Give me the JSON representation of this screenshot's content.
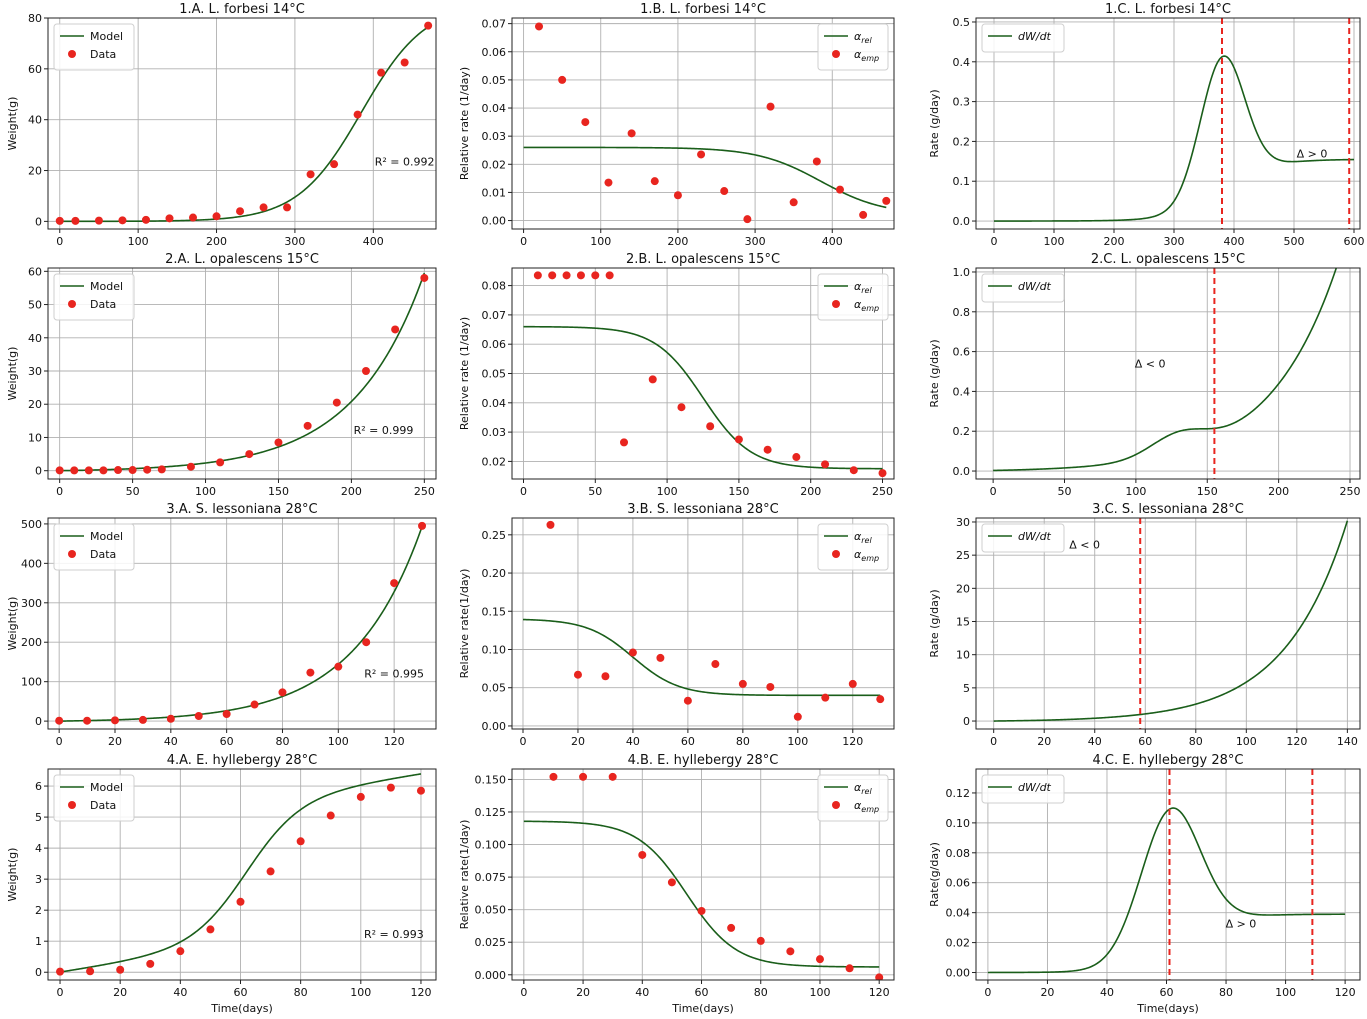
{
  "chart_data": [
    {
      "id": "1A",
      "type": "line",
      "title": "1.A. L. forbesi 14°C",
      "ylabel": "Weight(g)",
      "xlabel": "",
      "xlim": [
        -15,
        480
      ],
      "ylim": [
        -3,
        80
      ],
      "xticks": [
        0,
        100,
        200,
        300,
        400
      ],
      "yticks": [
        0,
        20,
        40,
        60,
        80
      ],
      "legend": [
        {
          "kind": "line",
          "label": "Model"
        },
        {
          "kind": "dot",
          "label": "Data"
        }
      ],
      "series": [
        {
          "kind": "line",
          "color": "#1a5e1a",
          "fn": {
            "type": "logistic",
            "K": 86,
            "r": 0.0245,
            "x0": 385,
            "base": 0
          },
          "x_range": [
            0,
            470
          ]
        },
        {
          "kind": "scatter",
          "color": "#e8251f",
          "x": [
            0,
            20,
            50,
            80,
            110,
            140,
            170,
            200,
            230,
            260,
            290,
            320,
            350,
            380,
            410,
            440,
            470
          ],
          "y": [
            0.2,
            0.2,
            0.3,
            0.4,
            0.6,
            1.2,
            1.5,
            2.0,
            4.0,
            5.5,
            5.5,
            18.5,
            22.5,
            42,
            58.5,
            62.5,
            77
          ]
        }
      ],
      "annotations": [
        {
          "text": "R² = 0.992",
          "x": 440,
          "y": 22
        }
      ],
      "vlines": []
    },
    {
      "id": "1B",
      "type": "line",
      "title": "1.B. L. forbesi 14°C",
      "ylabel": "Relative rate (1/day)",
      "xlabel": "",
      "xlim": [
        -15,
        480
      ],
      "ylim": [
        -0.003,
        0.072
      ],
      "xticks": [
        0,
        100,
        200,
        300,
        400
      ],
      "yticks": [
        0.0,
        0.01,
        0.02,
        0.03,
        0.04,
        0.05,
        0.06,
        0.07
      ],
      "ytick_decimals": 2,
      "legend": [
        {
          "kind": "line",
          "label": "αrel"
        },
        {
          "kind": "dot",
          "label": "αemp"
        }
      ],
      "series": [
        {
          "kind": "line",
          "color": "#1a5e1a",
          "fn": {
            "type": "rev_logistic",
            "top": 0.026,
            "bottom": 0.002,
            "k": 0.0245,
            "x0": 385
          },
          "x_range": [
            0,
            470
          ]
        },
        {
          "kind": "scatter",
          "color": "#e8251f",
          "x": [
            20,
            50,
            80,
            110,
            140,
            170,
            200,
            230,
            260,
            290,
            320,
            350,
            380,
            410,
            440,
            470
          ],
          "y": [
            0.069,
            0.05,
            0.035,
            0.0135,
            0.031,
            0.014,
            0.009,
            0.0235,
            0.0105,
            0.0005,
            0.0405,
            0.0065,
            0.021,
            0.011,
            0.002,
            0.007
          ]
        }
      ],
      "annotations": [],
      "vlines": []
    },
    {
      "id": "1C",
      "type": "line",
      "title": "1.C. L. forbesi 14°C",
      "ylabel": "Rate (g/day)",
      "xlabel": "",
      "xlim": [
        -30,
        610
      ],
      "ylim": [
        -0.02,
        0.51
      ],
      "xticks": [
        0,
        100,
        200,
        300,
        400,
        500,
        600
      ],
      "yticks": [
        0.0,
        0.1,
        0.2,
        0.3,
        0.4,
        0.5
      ],
      "ytick_decimals": 1,
      "legend": [
        {
          "kind": "line",
          "label": "dW/dt"
        }
      ],
      "series": [
        {
          "kind": "line",
          "color": "#1a5e1a",
          "fn": {
            "type": "bump",
            "amp": 0.335,
            "center": 380,
            "width": 52,
            "tail": 0.155,
            "tail_x0": 380,
            "tail_k": 0.025
          },
          "x_range": [
            0,
            600
          ]
        }
      ],
      "annotations": [
        {
          "text": "Δ > 0",
          "x": 530,
          "y": 0.16
        }
      ],
      "vlines": [
        380,
        592
      ]
    },
    {
      "id": "2A",
      "type": "line",
      "title": "2.A. L. opalescens 15°C",
      "ylabel": "Weight(g)",
      "xlabel": "",
      "xlim": [
        -8,
        258
      ],
      "ylim": [
        -2.5,
        61
      ],
      "xticks": [
        0,
        50,
        100,
        150,
        200,
        250
      ],
      "yticks": [
        0,
        10,
        20,
        30,
        40,
        50,
        60
      ],
      "legend": [
        {
          "kind": "line",
          "label": "Model"
        },
        {
          "kind": "dot",
          "label": "Data"
        }
      ],
      "series": [
        {
          "kind": "line",
          "color": "#1a5e1a",
          "fn": {
            "type": "exp",
            "a": 0.33,
            "b": 0.0208,
            "c": -0.33
          },
          "x_range": [
            0,
            250
          ]
        },
        {
          "kind": "scatter",
          "color": "#e8251f",
          "x": [
            0,
            10,
            20,
            30,
            40,
            50,
            60,
            70,
            90,
            110,
            130,
            150,
            170,
            190,
            210,
            230,
            250
          ],
          "y": [
            0.1,
            0.1,
            0.1,
            0.1,
            0.2,
            0.2,
            0.3,
            0.4,
            1.2,
            2.5,
            5.0,
            8.5,
            13.5,
            20.5,
            30,
            42.5,
            58
          ]
        }
      ],
      "annotations": [
        {
          "text": "R² = 0.999",
          "x": 222,
          "y": 11
        }
      ],
      "vlines": []
    },
    {
      "id": "2B",
      "type": "line",
      "title": "2.B. L. opalescens 15°C",
      "ylabel": "Relative rate (1/day)",
      "xlabel": "",
      "xlim": [
        -8,
        258
      ],
      "ylim": [
        0.014,
        0.086
      ],
      "xticks": [
        0,
        50,
        100,
        150,
        200,
        250
      ],
      "yticks": [
        0.02,
        0.03,
        0.04,
        0.05,
        0.06,
        0.07,
        0.08
      ],
      "ytick_decimals": 2,
      "legend": [
        {
          "kind": "line",
          "label": "αrel"
        },
        {
          "kind": "dot",
          "label": "αemp"
        }
      ],
      "series": [
        {
          "kind": "line",
          "color": "#1a5e1a",
          "fn": {
            "type": "rev_logistic",
            "top": 0.066,
            "bottom": 0.0175,
            "k": 0.06,
            "x0": 125
          },
          "x_range": [
            0,
            250
          ]
        },
        {
          "kind": "scatter",
          "color": "#e8251f",
          "x": [
            10,
            20,
            30,
            40,
            50,
            60,
            70,
            90,
            110,
            130,
            150,
            170,
            190,
            210,
            230,
            250
          ],
          "y": [
            0.0835,
            0.0835,
            0.0835,
            0.0835,
            0.0835,
            0.0835,
            0.0265,
            0.048,
            0.0385,
            0.032,
            0.0275,
            0.024,
            0.0215,
            0.019,
            0.017,
            0.016
          ]
        }
      ],
      "annotations": [],
      "vlines": []
    },
    {
      "id": "2C",
      "type": "line",
      "title": "2.C. L. opalescens 15°C",
      "ylabel": "Rate (g/day)",
      "xlabel": "",
      "xlim": [
        -12,
        257
      ],
      "ylim": [
        -0.04,
        1.02
      ],
      "xticks": [
        0,
        50,
        100,
        150,
        200,
        250
      ],
      "yticks": [
        0.0,
        0.2,
        0.4,
        0.6,
        0.8,
        1.0
      ],
      "ytick_decimals": 1,
      "legend": [
        {
          "kind": "line",
          "label": "dW/dt"
        }
      ],
      "series": [
        {
          "kind": "line",
          "color": "#1a5e1a",
          "fn": {
            "type": "growth_rate2",
            "a": 0.0069,
            "b": 0.0208,
            "c": -0.004
          },
          "x_range": [
            0,
            250
          ]
        }
      ],
      "annotations": [
        {
          "text": "Δ < 0",
          "x": 110,
          "y": 0.52
        }
      ],
      "vlines": [
        155
      ]
    },
    {
      "id": "3A",
      "type": "line",
      "title": "3.A. S. lessoniana 28°C",
      "ylabel": "Weight(g)",
      "xlabel": "",
      "xlim": [
        -4,
        135
      ],
      "ylim": [
        -20,
        515
      ],
      "xticks": [
        0,
        20,
        40,
        60,
        80,
        100,
        120
      ],
      "yticks": [
        0,
        100,
        200,
        300,
        400,
        500
      ],
      "legend": [
        {
          "kind": "line",
          "label": "Model"
        },
        {
          "kind": "dot",
          "label": "Data"
        }
      ],
      "series": [
        {
          "kind": "line",
          "color": "#1a5e1a",
          "fn": {
            "type": "exp",
            "a": 2.53,
            "b": 0.0406,
            "c": -2.53
          },
          "x_range": [
            0,
            130
          ]
        },
        {
          "kind": "scatter",
          "color": "#e8251f",
          "x": [
            0,
            10,
            20,
            30,
            40,
            50,
            60,
            70,
            80,
            90,
            100,
            110,
            120,
            130
          ],
          "y": [
            1,
            1,
            2,
            3,
            6,
            13,
            18,
            42,
            73,
            123,
            138,
            200,
            350,
            495
          ]
        }
      ],
      "annotations": [
        {
          "text": "R² = 0.995",
          "x": 120,
          "y": 110
        }
      ],
      "vlines": []
    },
    {
      "id": "3B",
      "type": "line",
      "title": "3.B. S. lessoniana 28°C",
      "ylabel": "Relative rate(1/day)",
      "xlabel": "",
      "xlim": [
        -4,
        135
      ],
      "ylim": [
        -0.004,
        0.272
      ],
      "xticks": [
        0,
        20,
        40,
        60,
        80,
        100,
        120
      ],
      "yticks": [
        0.0,
        0.05,
        0.1,
        0.15,
        0.2,
        0.25
      ],
      "ytick_decimals": 2,
      "legend": [
        {
          "kind": "line",
          "label": "αrel"
        },
        {
          "kind": "dot",
          "label": "αemp"
        }
      ],
      "series": [
        {
          "kind": "line",
          "color": "#1a5e1a",
          "fn": {
            "type": "rev_logistic",
            "top": 0.14,
            "bottom": 0.04,
            "k": 0.12,
            "x0": 40
          },
          "x_range": [
            0,
            130
          ]
        },
        {
          "kind": "scatter",
          "color": "#e8251f",
          "x": [
            10,
            20,
            30,
            40,
            50,
            60,
            70,
            80,
            90,
            100,
            110,
            120,
            130
          ],
          "y": [
            0.263,
            0.067,
            0.065,
            0.096,
            0.089,
            0.033,
            0.081,
            0.055,
            0.051,
            0.012,
            0.037,
            0.055,
            0.035
          ]
        }
      ],
      "annotations": [],
      "vlines": []
    },
    {
      "id": "3C",
      "type": "line",
      "title": "3.C. S. lessoniana 28°C",
      "ylabel": "Rate (g/day)",
      "xlabel": "",
      "xlim": [
        -7,
        145
      ],
      "ylim": [
        -1.2,
        30.6
      ],
      "xticks": [
        0,
        20,
        40,
        60,
        80,
        100,
        120,
        140
      ],
      "yticks": [
        0,
        5,
        10,
        15,
        20,
        25,
        30
      ],
      "legend": [
        {
          "kind": "line",
          "label": "dW/dt"
        }
      ],
      "series": [
        {
          "kind": "line",
          "color": "#1a5e1a",
          "fn": {
            "type": "exp",
            "a": 0.103,
            "b": 0.0406,
            "c": -0.103
          },
          "x_range": [
            0,
            140
          ]
        }
      ],
      "annotations": [
        {
          "text": "Δ < 0",
          "x": 36,
          "y": 26
        }
      ],
      "vlines": [
        58
      ]
    },
    {
      "id": "4A",
      "type": "line",
      "title": "4.A. E. hyllebergy 28°C",
      "ylabel": "Weight(g)",
      "xlabel": "Time(days)",
      "xlim": [
        -4,
        125
      ],
      "ylim": [
        -0.25,
        6.55
      ],
      "xticks": [
        0,
        20,
        40,
        60,
        80,
        100,
        120
      ],
      "yticks": [
        0,
        1,
        2,
        3,
        4,
        5,
        6
      ],
      "legend": [
        {
          "kind": "line",
          "label": "Model"
        },
        {
          "kind": "dot",
          "label": "Data"
        }
      ],
      "series": [
        {
          "kind": "line",
          "color": "#1a5e1a",
          "fn": {
            "type": "logistic_plus",
            "K": 4.6,
            "r": 0.11,
            "x0": 62,
            "slope": 0.015
          },
          "x_range": [
            0,
            120
          ]
        },
        {
          "kind": "scatter",
          "color": "#e8251f",
          "x": [
            0,
            10,
            20,
            30,
            40,
            50,
            60,
            70,
            80,
            90,
            100,
            110,
            120
          ],
          "y": [
            0.02,
            0.03,
            0.08,
            0.27,
            0.68,
            1.38,
            2.27,
            3.25,
            4.22,
            5.05,
            5.65,
            5.95,
            5.85
          ]
        }
      ],
      "annotations": [
        {
          "text": "R² = 0.993",
          "x": 111,
          "y": 1.1
        }
      ],
      "vlines": []
    },
    {
      "id": "4B",
      "type": "line",
      "title": "4.B. E. hyllebergy 28°C",
      "ylabel": "Relative rate(1/day)",
      "xlabel": "Time(days)",
      "xlim": [
        -4,
        125
      ],
      "ylim": [
        -0.004,
        0.158
      ],
      "xticks": [
        0,
        20,
        40,
        60,
        80,
        100,
        120
      ],
      "yticks": [
        0.0,
        0.025,
        0.05,
        0.075,
        0.1,
        0.125,
        0.15
      ],
      "ytick_decimals": 3,
      "legend": [
        {
          "kind": "line",
          "label": "αrel"
        },
        {
          "kind": "dot",
          "label": "αemp"
        }
      ],
      "series": [
        {
          "kind": "line",
          "color": "#1a5e1a",
          "fn": {
            "type": "rev_logistic",
            "top": 0.118,
            "bottom": 0.006,
            "k": 0.12,
            "x0": 55
          },
          "x_range": [
            0,
            120
          ]
        },
        {
          "kind": "scatter",
          "color": "#e8251f",
          "x": [
            10,
            20,
            30,
            40,
            50,
            60,
            70,
            80,
            90,
            100,
            110,
            120
          ],
          "y": [
            0.152,
            0.152,
            0.152,
            0.092,
            0.071,
            0.049,
            0.036,
            0.026,
            0.018,
            0.012,
            0.005,
            -0.002
          ]
        }
      ],
      "annotations": [],
      "vlines": []
    },
    {
      "id": "4C",
      "type": "line",
      "title": "4.C. E. hyllebergy 28°C",
      "ylabel": "Rate(g/day)",
      "xlabel": "Time(days)",
      "xlim": [
        -4,
        125
      ],
      "ylim": [
        -0.005,
        0.136
      ],
      "xticks": [
        0,
        20,
        40,
        60,
        80,
        100,
        120
      ],
      "yticks": [
        0.0,
        0.02,
        0.04,
        0.06,
        0.08,
        0.1,
        0.12
      ],
      "ytick_decimals": 2,
      "legend": [
        {
          "kind": "line",
          "label": "dW/dt"
        }
      ],
      "series": [
        {
          "kind": "line",
          "color": "#1a5e1a",
          "fn": {
            "type": "bump",
            "amp": 0.092,
            "center": 61,
            "width": 14,
            "tail": 0.039,
            "tail_x0": 63,
            "tail_k": 0.12
          },
          "x_range": [
            0,
            120
          ]
        }
      ],
      "annotations": [
        {
          "text": "Δ > 0",
          "x": 85,
          "y": 0.03
        }
      ],
      "vlines": [
        61,
        109
      ]
    }
  ]
}
